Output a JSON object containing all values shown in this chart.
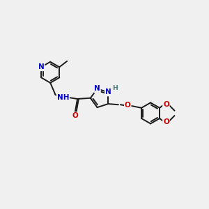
{
  "background_color": "#f0f0f0",
  "bond_color": "#1a1a1a",
  "atom_colors": {
    "N": "#0000cc",
    "O": "#cc0000",
    "H_teal": "#4a8080",
    "C": "#1a1a1a"
  },
  "figsize": [
    3.0,
    3.0
  ],
  "dpi": 100,
  "lw": 1.4,
  "fs": 7.5
}
